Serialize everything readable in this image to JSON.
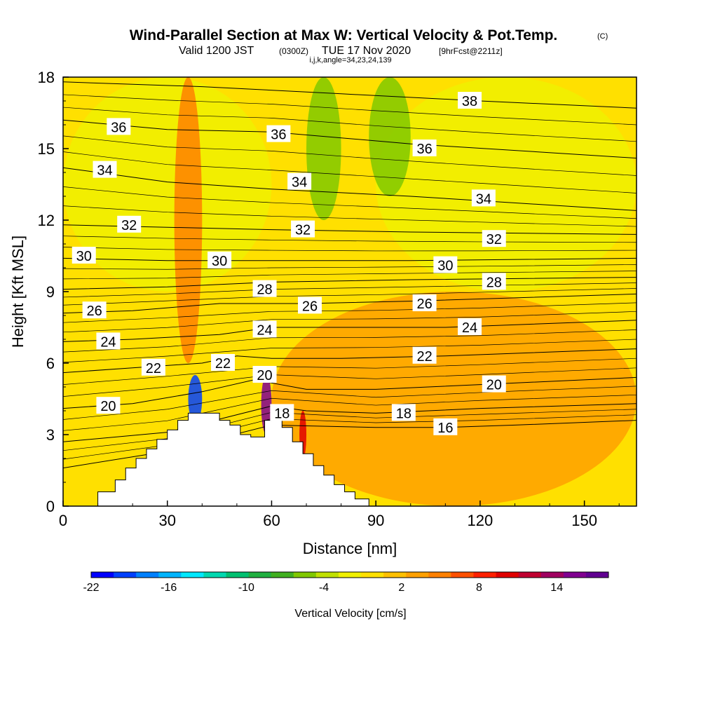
{
  "header": {
    "title": "Wind-Parallel Section at Max W: Vertical Velocity & Pot.Temp.",
    "title_mark": "(C)",
    "subtitle_a": "Valid 1200 JST",
    "subtitle_b": "(0300Z)",
    "subtitle_c": "TUE 17 Nov 2020",
    "subtitle_d": "[9hrFcst@2211z]",
    "subtitle_2": "i,j,k,angle=34,23,24,139"
  },
  "chart_data": {
    "type": "heatmap",
    "xlabel": "Distance [nm]",
    "ylabel": "Height [Kft MSL]",
    "xlim": [
      0,
      165
    ],
    "ylim": [
      0,
      18
    ],
    "x_ticks": [
      "0",
      "30",
      "60",
      "90",
      "120",
      "150"
    ],
    "x_tick_values": [
      0,
      30,
      60,
      90,
      120,
      150
    ],
    "y_ticks": [
      "0",
      "3",
      "6",
      "9",
      "12",
      "15",
      "18"
    ],
    "y_tick_values": [
      0,
      3,
      6,
      9,
      12,
      15,
      18
    ],
    "grid": false,
    "colorbar": {
      "label": "Vertical Velocity [cm/s]",
      "tick_labels": [
        "-22",
        "-16",
        "-10",
        "-4",
        "2",
        "8",
        "14"
      ],
      "tick_values": [
        -22,
        -16,
        -10,
        -4,
        2,
        8,
        14
      ],
      "min": -22,
      "max": 18,
      "colors": [
        "#0000ff",
        "#0040ff",
        "#0080ff",
        "#00b4ff",
        "#00e8ff",
        "#00d8b0",
        "#00c070",
        "#20b040",
        "#40b020",
        "#80c800",
        "#c0e000",
        "#f0f000",
        "#ffe000",
        "#ffc000",
        "#ffa000",
        "#ff8000",
        "#ff5000",
        "#ff2000",
        "#e00000",
        "#c00030",
        "#a00060",
        "#800090",
        "#600090"
      ]
    },
    "terrain": {
      "x": [
        0,
        10,
        10,
        15,
        15,
        18,
        18,
        21,
        21,
        24,
        24,
        27,
        27,
        30,
        30,
        33,
        33,
        36,
        36,
        39,
        39,
        45,
        45,
        48,
        48,
        51,
        51,
        54,
        54,
        58,
        58,
        60,
        60,
        63,
        63,
        66,
        66,
        69,
        69,
        72,
        72,
        75,
        75,
        78,
        78,
        81,
        81,
        84,
        84,
        88,
        88
      ],
      "y": [
        0,
        0,
        0.6,
        0.6,
        1.1,
        1.1,
        1.6,
        1.6,
        2.0,
        2.0,
        2.4,
        2.4,
        2.8,
        2.8,
        3.2,
        3.2,
        3.6,
        3.6,
        3.9,
        3.9,
        3.9,
        3.9,
        3.6,
        3.6,
        3.4,
        3.4,
        3.0,
        3.0,
        2.9,
        2.9,
        3.6,
        3.6,
        3.9,
        3.9,
        3.3,
        3.3,
        2.7,
        2.7,
        2.2,
        2.2,
        1.7,
        1.7,
        1.3,
        1.3,
        0.9,
        0.9,
        0.6,
        0.6,
        0.3,
        0.3,
        0
      ]
    },
    "theta_contours": [
      {
        "label": "16",
        "x": [
          0,
          30,
          60,
          90,
          110,
          130,
          165
        ],
        "y": [
          1.6,
          2.3,
          3.4,
          3.3,
          3.3,
          3.4,
          3.6
        ]
      },
      {
        "label": "18",
        "x": [
          0,
          30,
          60,
          70,
          90,
          120,
          165
        ],
        "y": [
          2.7,
          3.1,
          4.2,
          4.0,
          3.9,
          4.1,
          4.3
        ]
      },
      {
        "label": "20",
        "x": [
          0,
          20,
          40,
          55,
          70,
          90,
          120,
          165
        ],
        "y": [
          4.1,
          4.3,
          4.8,
          5.3,
          4.9,
          4.9,
          5.1,
          5.4
        ]
      },
      {
        "label": "22",
        "x": [
          0,
          20,
          40,
          50,
          60,
          80,
          110,
          165
        ],
        "y": [
          5.6,
          5.8,
          6.0,
          6.3,
          6.2,
          6.2,
          6.3,
          6.6
        ]
      },
      {
        "label": "24",
        "x": [
          0,
          20,
          45,
          60,
          80,
          110,
          165
        ],
        "y": [
          6.9,
          7.0,
          7.2,
          7.5,
          7.5,
          7.5,
          7.8
        ]
      },
      {
        "label": "26",
        "x": [
          0,
          20,
          45,
          70,
          100,
          165
        ],
        "y": [
          8.1,
          8.2,
          8.5,
          8.5,
          8.6,
          8.9
        ]
      },
      {
        "label": "28",
        "x": [
          0,
          30,
          60,
          100,
          165
        ],
        "y": [
          9.1,
          9.2,
          9.4,
          9.5,
          9.6
        ]
      },
      {
        "label": "30",
        "x": [
          0,
          30,
          60,
          100,
          165
        ],
        "y": [
          10.4,
          10.3,
          10.3,
          10.3,
          10.4
        ]
      },
      {
        "label": "32",
        "x": [
          0,
          30,
          60,
          100,
          165
        ],
        "y": [
          11.8,
          11.7,
          11.6,
          11.5,
          11.4
        ]
      },
      {
        "label": "34",
        "x": [
          0,
          30,
          60,
          100,
          165
        ],
        "y": [
          14.2,
          13.6,
          13.3,
          13.0,
          12.4
        ]
      },
      {
        "label": "36",
        "x": [
          0,
          30,
          60,
          100,
          165
        ],
        "y": [
          16.2,
          15.8,
          15.7,
          15.2,
          14.6
        ]
      },
      {
        "label": "38",
        "x": [
          0,
          40,
          80,
          120,
          165
        ],
        "y": [
          17.8,
          17.6,
          17.3,
          17.0,
          16.7
        ]
      }
    ],
    "theta_labels": [
      {
        "text": "16",
        "x": 110,
        "y": 3.3
      },
      {
        "text": "18",
        "x": 98,
        "y": 3.9
      },
      {
        "text": "18",
        "x": 63,
        "y": 3.9
      },
      {
        "text": "20",
        "x": 13,
        "y": 4.2
      },
      {
        "text": "20",
        "x": 58,
        "y": 5.5
      },
      {
        "text": "20",
        "x": 124,
        "y": 5.1
      },
      {
        "text": "22",
        "x": 26,
        "y": 5.8
      },
      {
        "text": "22",
        "x": 46,
        "y": 6.0
      },
      {
        "text": "22",
        "x": 104,
        "y": 6.3
      },
      {
        "text": "24",
        "x": 13,
        "y": 6.9
      },
      {
        "text": "24",
        "x": 58,
        "y": 7.4
      },
      {
        "text": "24",
        "x": 117,
        "y": 7.5
      },
      {
        "text": "26",
        "x": 9,
        "y": 8.2
      },
      {
        "text": "26",
        "x": 71,
        "y": 8.4
      },
      {
        "text": "26",
        "x": 104,
        "y": 8.5
      },
      {
        "text": "28",
        "x": 58,
        "y": 9.1
      },
      {
        "text": "28",
        "x": 124,
        "y": 9.4
      },
      {
        "text": "30",
        "x": 6,
        "y": 10.5
      },
      {
        "text": "30",
        "x": 45,
        "y": 10.3
      },
      {
        "text": "30",
        "x": 110,
        "y": 10.1
      },
      {
        "text": "32",
        "x": 19,
        "y": 11.8
      },
      {
        "text": "32",
        "x": 69,
        "y": 11.6
      },
      {
        "text": "32",
        "x": 124,
        "y": 11.2
      },
      {
        "text": "34",
        "x": 12,
        "y": 14.1
      },
      {
        "text": "34",
        "x": 68,
        "y": 13.6
      },
      {
        "text": "34",
        "x": 121,
        "y": 12.9
      },
      {
        "text": "36",
        "x": 16,
        "y": 15.9
      },
      {
        "text": "36",
        "x": 62,
        "y": 15.6
      },
      {
        "text": "36",
        "x": 104,
        "y": 15.0
      },
      {
        "text": "38",
        "x": 117,
        "y": 17.0
      }
    ],
    "velocity_field_regions": [
      {
        "name": "background-weak-upward",
        "value": 0
      },
      {
        "name": "upper-left-weak-upward",
        "value": -2,
        "x": [
          0,
          60
        ],
        "y": [
          9,
          18
        ]
      },
      {
        "name": "upper-right-weak-upward",
        "value": -2,
        "x": [
          90,
          165
        ],
        "y": [
          9,
          18
        ]
      },
      {
        "name": "lower-broad-rising",
        "value": 3,
        "x": [
          60,
          165
        ],
        "y": [
          0,
          9
        ]
      },
      {
        "name": "mountain-column-ascent",
        "value": 5,
        "x": [
          32,
          40
        ],
        "y": [
          6,
          18
        ]
      },
      {
        "name": "mid-column-sink",
        "value": -6,
        "x": [
          70,
          80
        ],
        "y": [
          12,
          18
        ]
      },
      {
        "name": "right-column-sink",
        "value": -6,
        "x": [
          88,
          100
        ],
        "y": [
          13,
          18
        ]
      },
      {
        "name": "left-slope-strong-sink",
        "value": -20,
        "x": [
          36,
          40
        ],
        "y": [
          3.5,
          5.5
        ]
      },
      {
        "name": "lee-strong-ascent",
        "value": 16,
        "x": [
          57,
          60
        ],
        "y": [
          3,
          5.5
        ]
      },
      {
        "name": "lee-ascent-lower",
        "value": 10,
        "x": [
          68,
          70
        ],
        "y": [
          2,
          4
        ]
      }
    ]
  }
}
